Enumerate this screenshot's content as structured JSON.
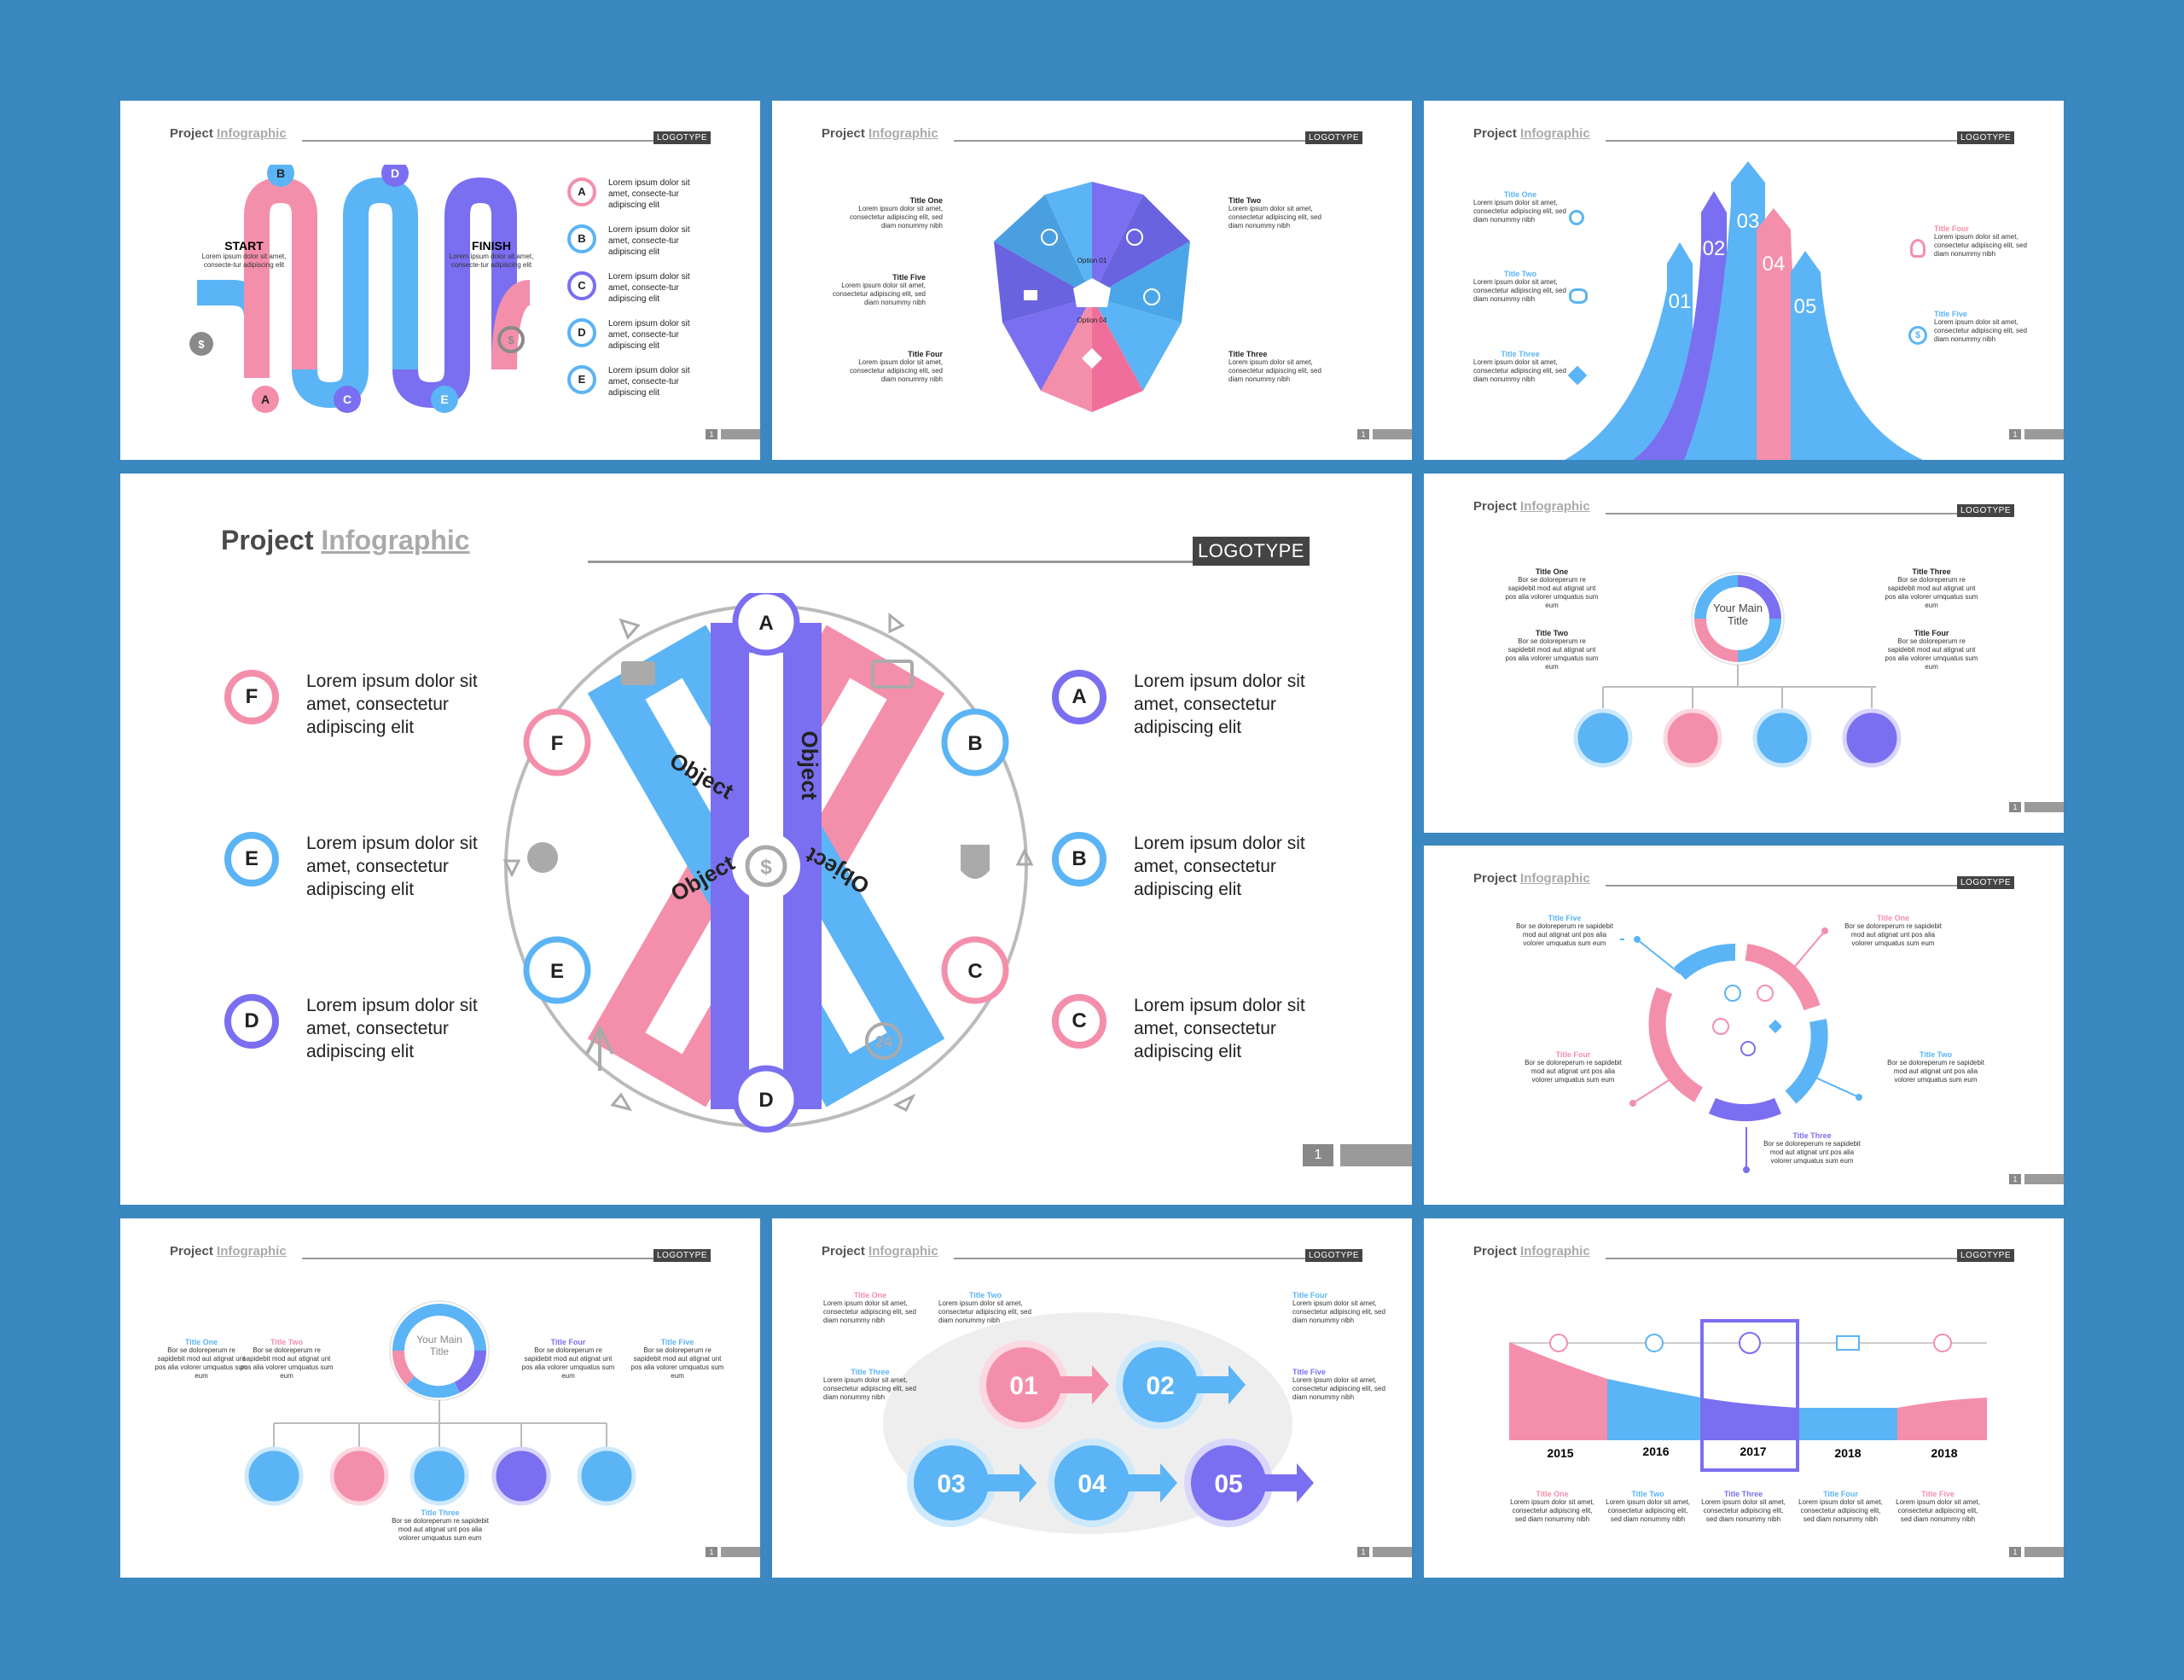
{
  "header": {
    "project": "Project",
    "infographic": "Infographic",
    "logotype": "LOGOTYPE",
    "page": "1"
  },
  "lorem_short": "Lorem ipsum dolor sit amet, consectetur adipiscing elit, sed diam nonummy nibh",
  "lorem_tiny": "Bor se doloreperum re sapidebit mod aut atignat unt pos alia volorer umquatus sum eum",
  "colors": {
    "blue": "#5bb4f5",
    "pink": "#f48fab",
    "purple": "#7a6ff0",
    "bg": "#3a88bf"
  },
  "slide1": {
    "start": "START",
    "finish": "FINISH",
    "start_text": "Lorem ipsum dolor sit amet, consecte-tur adipiscing elit",
    "finish_text": "Lorem ipsum dolor sit amet, consecte-tur adipiscing elit",
    "top_letters": [
      "B",
      "D"
    ],
    "bottom_letters": [
      "A",
      "C",
      "E"
    ],
    "legend": [
      {
        "letter": "A",
        "text": "Lorem ipsum dolor sit amet, consecte-tur adipiscing elit"
      },
      {
        "letter": "B",
        "text": "Lorem ipsum dolor sit amet, consecte-tur adipiscing elit"
      },
      {
        "letter": "C",
        "text": "Lorem ipsum dolor sit amet, consecte-tur adipiscing elit"
      },
      {
        "letter": "D",
        "text": "Lorem ipsum dolor sit amet, consecte-tur adipiscing elit"
      },
      {
        "letter": "E",
        "text": "Lorem ipsum dolor sit amet, consecte-tur adipiscing elit"
      }
    ]
  },
  "slide2": {
    "titles": [
      "Title One",
      "Title Two",
      "Title Three",
      "Title Four",
      "Title Five"
    ],
    "options": [
      "Option 01",
      "Option 02",
      "Option 03",
      "Option 04",
      "Option 05"
    ]
  },
  "slide3": {
    "titles": [
      "Title One",
      "Title Two",
      "Title Three",
      "Title Four",
      "Title Five"
    ],
    "numbers": [
      "01",
      "02",
      "03",
      "04",
      "05"
    ]
  },
  "big": {
    "objects": [
      "Object",
      "Object",
      "Object",
      "Object"
    ],
    "letters": [
      "A",
      "B",
      "C",
      "D",
      "E",
      "F"
    ],
    "left": [
      {
        "letter": "F",
        "text": "Lorem ipsum dolor sit amet, consectetur adipiscing elit"
      },
      {
        "letter": "E",
        "text": "Lorem ipsum dolor sit amet, consectetur adipiscing elit"
      },
      {
        "letter": "D",
        "text": "Lorem ipsum dolor sit amet, consectetur adipiscing elit"
      }
    ],
    "right": [
      {
        "letter": "A",
        "text": "Lorem ipsum dolor sit amet, consectetur adipiscing elit"
      },
      {
        "letter": "B",
        "text": "Lorem ipsum dolor sit amet, consectetur adipiscing elit"
      },
      {
        "letter": "C",
        "text": "Lorem ipsum dolor sit amet, consectetur adipiscing elit"
      }
    ]
  },
  "slide5": {
    "center": "Your Main Title",
    "titles": [
      "Title One",
      "Title Two",
      "Title Three",
      "Title Four"
    ]
  },
  "slide6": {
    "titles": [
      "Title One",
      "Title Two",
      "Title Three",
      "Title Four",
      "Title Five"
    ]
  },
  "slide7": {
    "center": "Your Main Title",
    "titles": [
      "Title One",
      "Title Two",
      "Title Three",
      "Title Four",
      "Title Five"
    ]
  },
  "slide8": {
    "numbers": [
      "01",
      "02",
      "03",
      "04",
      "05"
    ],
    "titles": [
      "Title One",
      "Title Two",
      "Title Three",
      "Title Four",
      "Title Five"
    ]
  },
  "slide9": {
    "years": [
      "2015",
      "2016",
      "2017",
      "2018",
      "2018"
    ],
    "titles": [
      "Title One",
      "Title Two",
      "Title Three",
      "Title Four",
      "Title Five"
    ]
  }
}
